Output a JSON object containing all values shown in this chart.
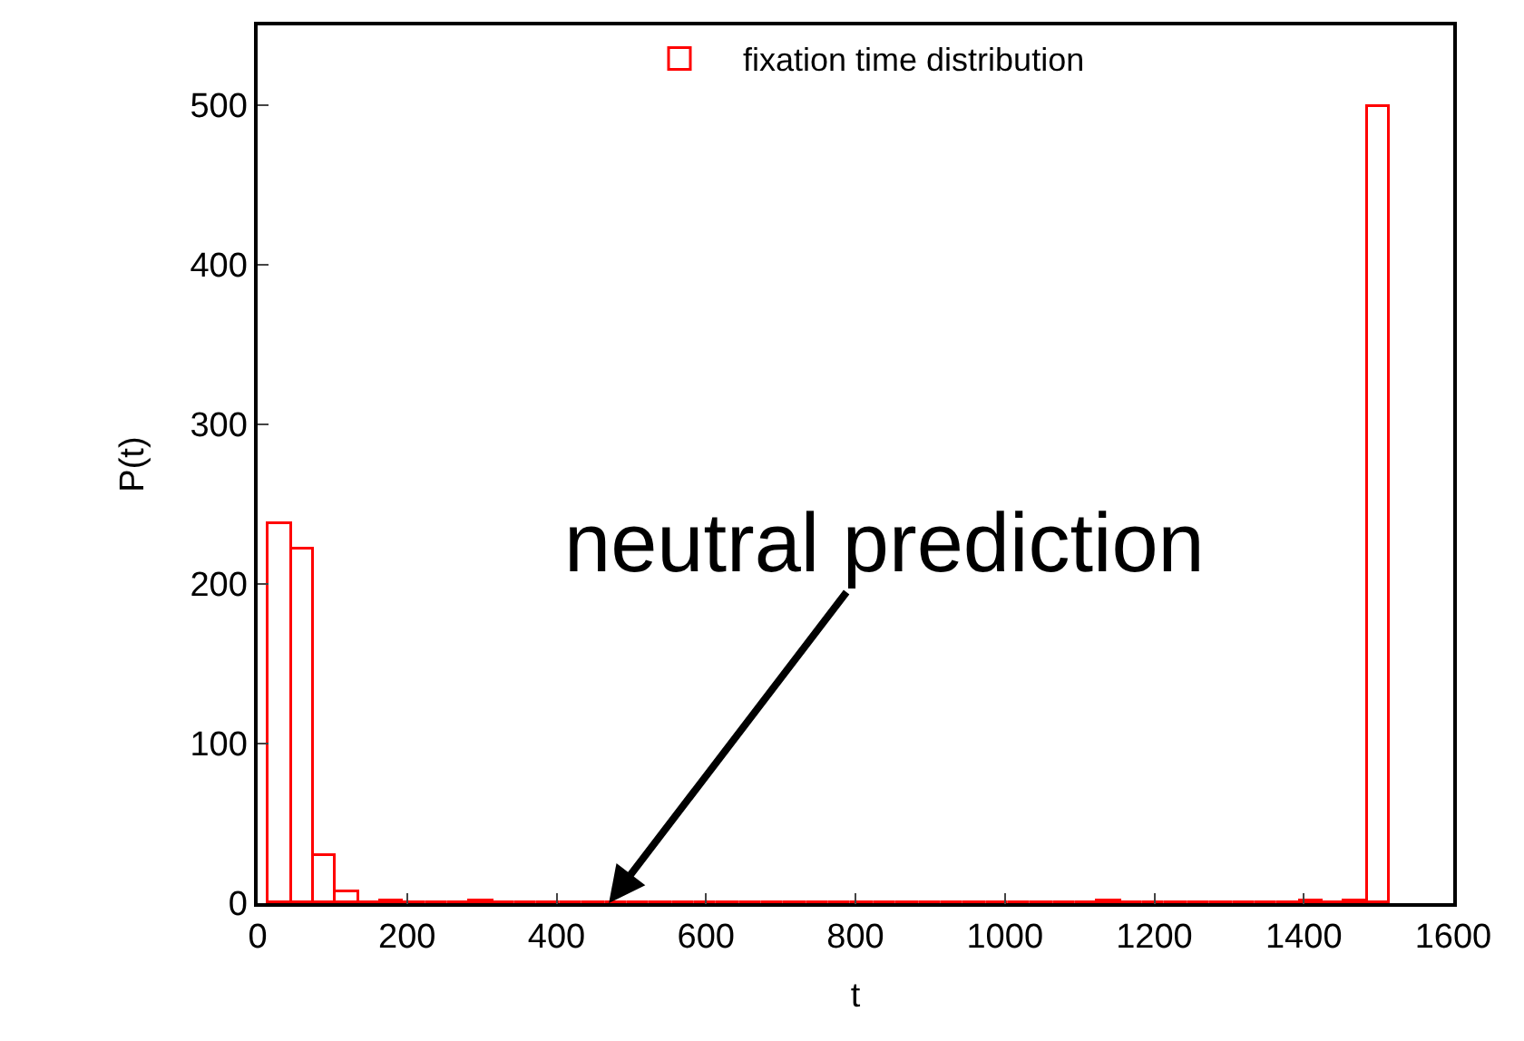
{
  "chart_data": {
    "type": "histogram",
    "xlabel": "t",
    "ylabel": "P(t)",
    "bins": [
      15,
      45,
      75,
      105,
      135,
      165,
      195,
      225,
      255,
      285,
      315,
      345,
      375,
      405,
      435,
      465,
      495,
      525,
      555,
      585,
      615,
      645,
      675,
      705,
      735,
      765,
      795,
      825,
      855,
      885,
      915,
      945,
      975,
      1005,
      1035,
      1065,
      1095,
      1125,
      1155,
      1185,
      1215,
      1245,
      1275,
      1305,
      1335,
      1365,
      1395,
      1425,
      1455,
      1485,
      1515
    ],
    "series": [
      {
        "name": "fixation time distribution",
        "color": "#ff0000",
        "values": [
          238,
          222,
          29,
          7,
          0,
          1,
          0,
          0,
          0,
          1,
          0,
          0,
          0,
          0,
          0,
          0,
          0,
          0,
          0,
          0,
          0,
          0,
          0,
          0,
          0,
          0,
          0,
          0,
          0,
          0,
          0,
          0,
          0,
          0,
          0,
          0,
          0,
          1,
          0,
          0,
          0,
          0,
          0,
          0,
          0,
          0,
          1,
          0,
          1,
          499
        ]
      }
    ],
    "xlim": [
      0,
      1600
    ],
    "ylim": [
      0,
      550
    ],
    "xticks": [
      0,
      200,
      400,
      600,
      800,
      1000,
      1200,
      1400,
      1600
    ],
    "yticks": [
      0,
      100,
      200,
      300,
      400,
      500
    ],
    "legend": "top",
    "annotations": [
      {
        "text": "neutral prediction",
        "x": 470,
        "y": 0
      }
    ]
  }
}
